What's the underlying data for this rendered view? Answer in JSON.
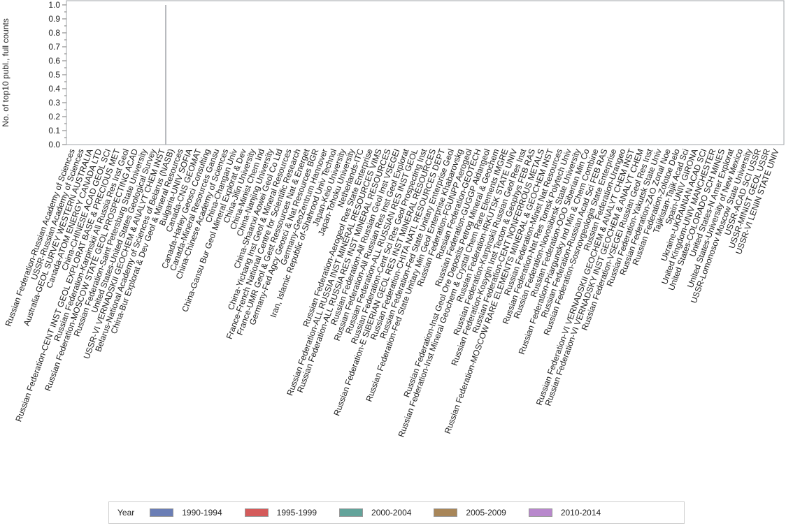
{
  "chart_data": {
    "type": "bar",
    "title": "",
    "xlabel": "",
    "ylabel": "No. of top10 publ., full counts",
    "ylim": [
      0,
      1.0
    ],
    "yticks": [
      "0.0",
      "0.1",
      "0.2",
      "0.3",
      "0.4",
      "0.5",
      "0.6",
      "0.7",
      "0.8",
      "0.9",
      "1.0"
    ],
    "grid": false,
    "legend_position": "bottom",
    "legend_title": "Year",
    "series": [
      {
        "name": "1990-1994",
        "color": "#6b7eb5"
      },
      {
        "name": "1995-1999",
        "color": "#d45b5b"
      },
      {
        "name": "2000-2004",
        "color": "#63a39a"
      },
      {
        "name": "2005-2009",
        "color": "#a88659"
      },
      {
        "name": "2010-2014",
        "color": "#b888cc"
      }
    ],
    "categories": [
      "Russian Federation-Russian Academy of Sciences",
      "USSR-Russian Academy of Sciences",
      "Australia-GEOL SURVEY WESTERN AUSTRALIA",
      "Canada-ATOM ENERGY CANADA LTD",
      "China-CHINESE ACAD GEOL SCI",
      "Russian Federation-CENT INST GEOL EXPLORAT BASE & PRECIOUS MET",
      "Russian Federation-Karpinskii All Russia Res Inst Geol",
      "Russian Federation-MOSCOW STATE GEOL PROSPECTING ACAD",
      "Russian Federation-Saint Petersburg State University",
      "United States-United States Geological Survey",
      "USSR-VI VERNADSKII GEOCHEM & ANALYT CHEM INST",
      "Belarus-National Academy of Sciences of Belarus (NASB)",
      "China-Bur Explorat & Dev Geol & Mineral Resources",
      "Bulgaria-UNIV SOFIA",
      "Canada-CNS GEOMAT",
      "Canada-Harley Geosci Consulting",
      "Canada-Mineral Resources Gansu",
      "China-Chinese Academy of Sciences",
      "China-Changan Univ",
      "China-Gansu Bur Geol Mineral Explorat & Dev",
      "China-Jilin University",
      "China-Minist Chem Ind",
      "China-Nanjing University",
      "China-Shaanxi Aowei Geol Co Ltd",
      "China-Yichang Inst Geol & Mineral Resources",
      "France-French National Centre for Scientific Research",
      "France-UMR Geol & Gest Ressources Nat & Energet",
      "Germany-Fed Agcy Geosci & Nat Resources BGR",
      "Germany-GeoZentrum Hannover",
      "Iran, Islamic Republic of-Shahrood Univ Technol",
      "Japan-Keio University",
      "Japan-Tohoku University",
      "Netherlands-ITC",
      "Russian Federation-Aerogeol Res State Enterprise",
      "Russian Federation-ALL RUSSIA INST MINERAL RESOURCES VIMS",
      "Russian Federation-ALL RUSSIA RES INST MINERAL RESOURCES",
      "Russian Federation-All Russian Geol Inst VSEGEI",
      "Russian Federation-All Russian Res Inst Geol Explorat",
      "Russian Federation-ALL RUSSIAN RES INST GEOL",
      "Russian Federation-Cent Sci Res Geol Prospecting Inst",
      "Russian Federation-E SIBERIAN GEOL RES INST MINERAL RESOURCES",
      "Russian Federation-CHITA NATL RESOURCES DEPT",
      "Russian Federation-Fed State Unitary Enterprise Geol",
      "Russian Federation-Fed State Unitary Min Geol Enterprise Khabarovskg",
      "Russian Federation-FGUNPP Aerogeol",
      "Russian Federation-GEOTECH",
      "Russian Federation-GUGGP Aldangeol",
      "Russian Federation-Inst Geol Ore Deposits Petrog Mineral & Geochem",
      "Russian Federation-Inst Mineral Geochem & Crystal Chem Rare Elements IMGRE",
      "Russian Federation-IRKUTSK STATE UNIV",
      "Russian Federation-Karpinskii Russian Geol Res Inst",
      "Russian Federation-Kosygin Inst Tecton & Geophys FEB RAS",
      "Russian Federation-CENT NONFERROUS METALS",
      "Russian Federation-MOSCOW RARE ELEMENTS MINERAL & GEOCHEM INST",
      "Russian Federation-Minist Nat Resources",
      "Russian Federation-Nat Res Tomsk Polytech Univ",
      "Russian Federation-Novosibirsk State University",
      "Russian Federation-OOO Siberian Min Co",
      "Russian Federation-Priargunsky Ind Min & Chem Combine",
      "Russian Federation-Russian Acad Sci FEB RAS",
      "Russian Federation-Sosnovgeologia State Enterprise",
      "Russian Federation-Urangeo",
      "Russian Federation-VI VERNADSKII GEOCHEM & ANALYT CHEM INST",
      "Russian Federation-VI VERNADSKY INST GEOCHEM & ANALYT CHEM",
      "Russian Federation-VSEGEI Russian Geol Res Inst",
      "Russian Federation-Yakutsk State Univ",
      "Russian Federation-ZAO Zonal Noe",
      "Russian Federation-Zolotoe Delo",
      "Tajikistan-Tajik Acad Sci",
      "Spain-UNIV GIRONA",
      "Ukraine-UKRAINIAN ACAD SCI",
      "United Kingdom-UNIV MANCHESTER",
      "United States-COLORADO SCH MINES",
      "United States-N Amer Explorat",
      "United States-University of New Mexico",
      "USSR-Lomonosov Moscow State University",
      "USSR-ACAD SCI USSR",
      "USSR-MINIST GEOL USSR",
      "USSR-VI LENIN STATE UNIV"
    ],
    "bars": [
      {
        "category_index": 11,
        "series": "1990-1994",
        "value": 1.0,
        "note": "single thin bar at full height"
      }
    ],
    "values": [
      0,
      0,
      0,
      0,
      0,
      0,
      0,
      0,
      0,
      0,
      0,
      1,
      0,
      0,
      0,
      0,
      0,
      0,
      0,
      0,
      0,
      0,
      0,
      0,
      0,
      0,
      0,
      0,
      0,
      0,
      0,
      0,
      0,
      0,
      0,
      0,
      0,
      0,
      0,
      0,
      0,
      0,
      0,
      0,
      0,
      0,
      0,
      0,
      0,
      0,
      0,
      0,
      0,
      0,
      0,
      0,
      0,
      0,
      0,
      0,
      0,
      0,
      0,
      0,
      0,
      0,
      0,
      0,
      0,
      0,
      0,
      0,
      0,
      0,
      0,
      0,
      0,
      0,
      0
    ]
  }
}
